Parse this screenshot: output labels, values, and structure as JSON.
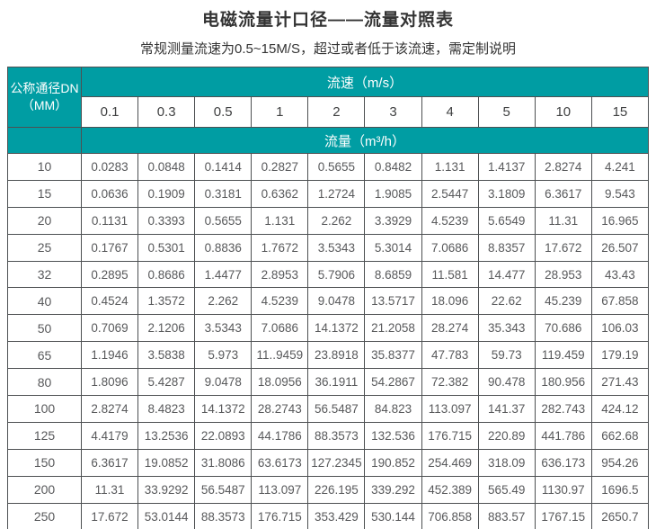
{
  "chart_data": {
    "type": "table",
    "title": "电磁流量计口径——流量对照表",
    "subtitle": "常规测量流速为0.5~15M/S，超过或者低于该流速，需定制说明",
    "corner_header_line1": "公称通径DN",
    "corner_header_line2": "（MM）",
    "column_group_label": "流速（m/s）",
    "value_group_label": "流量（m³/h）",
    "columns": [
      "0.1",
      "0.3",
      "0.5",
      "1",
      "2",
      "3",
      "4",
      "5",
      "10",
      "15"
    ],
    "rows": [
      {
        "dn": "10",
        "values": [
          "0.0283",
          "0.0848",
          "0.1414",
          "0.2827",
          "0.5655",
          "0.8482",
          "1.131",
          "1.4137",
          "2.8274",
          "4.241"
        ]
      },
      {
        "dn": "15",
        "values": [
          "0.0636",
          "0.1909",
          "0.3181",
          "0.6362",
          "1.2724",
          "1.9085",
          "2.5447",
          "3.1809",
          "6.3617",
          "9.543"
        ]
      },
      {
        "dn": "20",
        "values": [
          "0.1131",
          "0.3393",
          "0.5655",
          "1.131",
          "2.262",
          "3.3929",
          "4.5239",
          "5.6549",
          "11.31",
          "16.965"
        ]
      },
      {
        "dn": "25",
        "values": [
          "0.1767",
          "0.5301",
          "0.8836",
          "1.7672",
          "3.5343",
          "5.3014",
          "7.0686",
          "8.8357",
          "17.672",
          "26.507"
        ]
      },
      {
        "dn": "32",
        "values": [
          "0.2895",
          "0.8686",
          "1.4477",
          "2.8953",
          "5.7906",
          "8.6859",
          "11.581",
          "14.477",
          "28.953",
          "43.43"
        ]
      },
      {
        "dn": "40",
        "values": [
          "0.4524",
          "1.3572",
          "2.262",
          "4.5239",
          "9.0478",
          "13.5717",
          "18.096",
          "22.62",
          "45.239",
          "67.858"
        ]
      },
      {
        "dn": "50",
        "values": [
          "0.7069",
          "2.1206",
          "3.5343",
          "7.0686",
          "14.1372",
          "21.2058",
          "28.274",
          "35.343",
          "70.686",
          "106.03"
        ]
      },
      {
        "dn": "65",
        "values": [
          "1.1946",
          "3.5838",
          "5.973",
          "11..9459",
          "23.8918",
          "35.8377",
          "47.783",
          "59.73",
          "119.459",
          "179.19"
        ]
      },
      {
        "dn": "80",
        "values": [
          "1.8096",
          "5.4287",
          "9.0478",
          "18.0956",
          "36.1911",
          "54.2867",
          "72.382",
          "90.478",
          "180.956",
          "271.43"
        ]
      },
      {
        "dn": "100",
        "values": [
          "2.8274",
          "8.4823",
          "14.1372",
          "28.2743",
          "56.5487",
          "84.823",
          "113.097",
          "141.37",
          "282.743",
          "424.12"
        ]
      },
      {
        "dn": "125",
        "values": [
          "4.4179",
          "13.2536",
          "22.0893",
          "44.1786",
          "88.3573",
          "132.536",
          "176.715",
          "220.89",
          "441.786",
          "662.68"
        ]
      },
      {
        "dn": "150",
        "values": [
          "6.3617",
          "19.0852",
          "31.8086",
          "63.6173",
          "127.2345",
          "190.852",
          "254.469",
          "318.09",
          "636.173",
          "954.26"
        ]
      },
      {
        "dn": "200",
        "values": [
          "11.31",
          "33.9292",
          "56.5487",
          "113.097",
          "226.195",
          "339.292",
          "452.389",
          "565.49",
          "1130.97",
          "1696.5"
        ]
      },
      {
        "dn": "250",
        "values": [
          "17.672",
          "53.0144",
          "88.3573",
          "176.715",
          "353.429",
          "530.144",
          "706.858",
          "883.57",
          "1767.15",
          "2650.7"
        ]
      }
    ]
  },
  "colors": {
    "header_teal": "#009DA3",
    "grid_border": "#4d5052",
    "data_text": "#58595b",
    "title_text": "#333333"
  }
}
